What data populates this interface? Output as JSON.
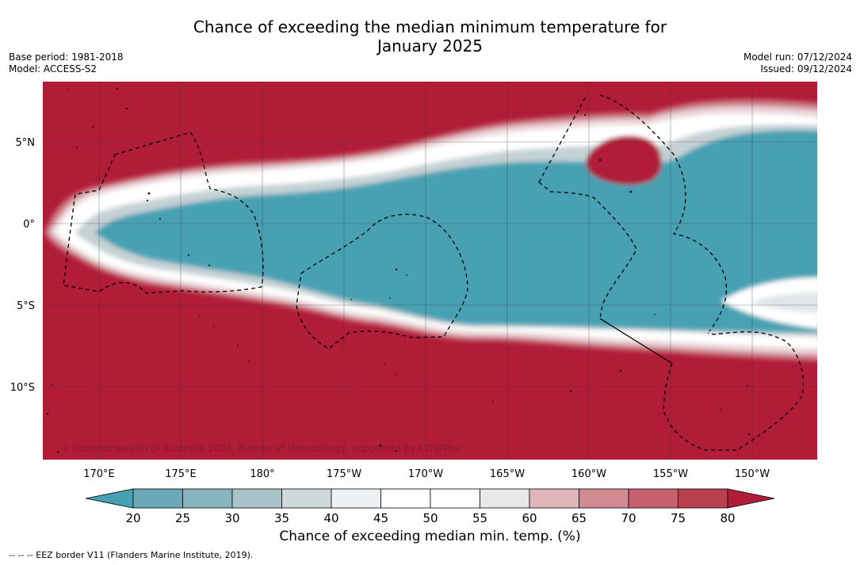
{
  "header": {
    "title_line1": "Chance of exceeding the median minimum temperature for",
    "title_line2": "January 2025",
    "base_period": "Base period: 1981-2018",
    "model": "Model: ACCESS-S2",
    "model_run": "Model run: 07/12/2024",
    "issued": "Issued: 09/12/2024"
  },
  "map": {
    "lat_labels": [
      "5°N",
      "0°",
      "5°S",
      "10°S"
    ],
    "lon_labels": [
      "170°E",
      "175°E",
      "180°",
      "175°W",
      "170°W",
      "165°W",
      "160°W",
      "155°W",
      "150°W"
    ],
    "copyright": "© Commonwealth of Australia 2024, Bureau of Meteorology, supported by COSPPac",
    "background_color": "#b11c37",
    "core_color": "#47a1b3"
  },
  "colorbar": {
    "ticks": [
      "20",
      "25",
      "30",
      "35",
      "40",
      "45",
      "50",
      "55",
      "60",
      "65",
      "70",
      "75",
      "80"
    ],
    "colors": [
      "#47a1b3",
      "#6ba8b8",
      "#88b5c1",
      "#a9c3c8",
      "#cfd8da",
      "#edf1f3",
      "#ffffff",
      "#ffffff",
      "#e8e8e8",
      "#e0b6bc",
      "#d38b93",
      "#c6606e",
      "#b9404f",
      "#b11c37"
    ],
    "title": "Chance of exceeding median min. temp. (%)"
  },
  "legend": {
    "eez": "--  --  -- EEZ border V11 (Flanders Marine Institute, 2019)."
  }
}
